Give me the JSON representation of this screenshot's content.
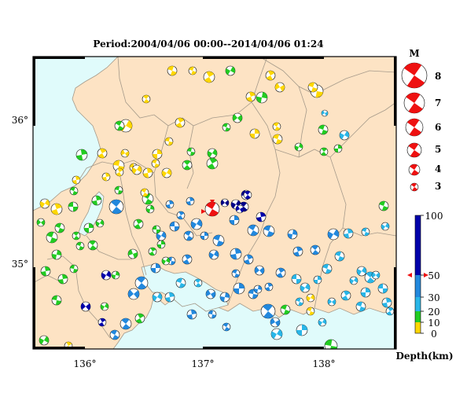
{
  "title": "Period:2004/04/06 00:00--2014/04/06 01:24",
  "axes": {
    "lon_labels": [
      "136°",
      "137°",
      "138°"
    ],
    "lat_labels": [
      "36°",
      "35°"
    ]
  },
  "magnitude_legend": {
    "heading": "M",
    "items": [
      "8",
      "7",
      "6",
      "5",
      "4",
      "3"
    ]
  },
  "depth_scale": {
    "label": "Depth(km)",
    "ticks": [
      "100",
      "50",
      "30",
      "20",
      "10",
      "0"
    ],
    "colors": [
      "#ffd700",
      "#22cc22",
      "#29b6e8",
      "#2288dd",
      "#0000aa"
    ]
  },
  "colors": {
    "sea": "#e0fbfb",
    "land": "#fde3c4",
    "border": "#a59a8a",
    "highlight_event": "#ee1111"
  }
}
